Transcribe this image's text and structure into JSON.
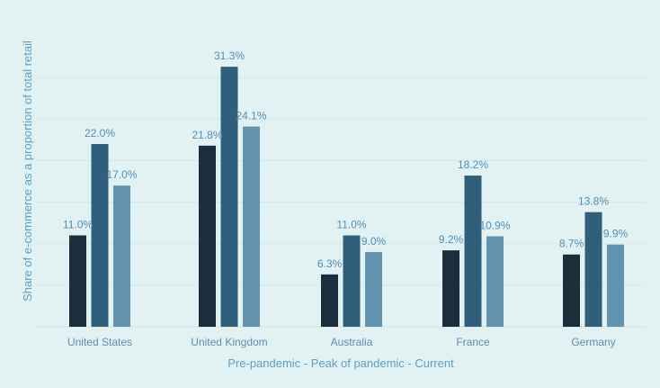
{
  "chart_data": {
    "type": "bar",
    "categories": [
      "United States",
      "United Kingdom",
      "Australia",
      "France",
      "Germany"
    ],
    "series": [
      {
        "values": [
          11.0,
          21.8,
          6.3,
          9.2,
          8.7
        ],
        "labels": [
          "11.0%",
          "21.8%",
          "6.3%",
          "9.2%",
          "8.7%"
        ],
        "color": "#1a2e3b"
      },
      {
        "values": [
          22.0,
          31.3,
          11.0,
          18.2,
          13.8
        ],
        "labels": [
          "22.0%",
          "31.3%",
          "11.0%",
          "18.2%",
          "13.8%"
        ],
        "color": "#2f5f7a"
      },
      {
        "values": [
          17.0,
          24.1,
          9.0,
          10.9,
          9.9
        ],
        "labels": [
          "17.0%",
          "24.1%",
          "9.0%",
          "10.9%",
          "9.9%"
        ],
        "color": "#6393ae"
      }
    ],
    "xlabel": "Pre-pandemic - Peak of pandemic - Current",
    "ylabel": "Share of e-commerce as a proportion of total retail",
    "ylim": [
      0,
      35
    ],
    "grid": true,
    "legend": "none",
    "colors": {
      "background": "#e2f2f3",
      "grid": "#d3e7ea",
      "text": "#5a8fb0",
      "label": "#4f8fb8"
    }
  }
}
